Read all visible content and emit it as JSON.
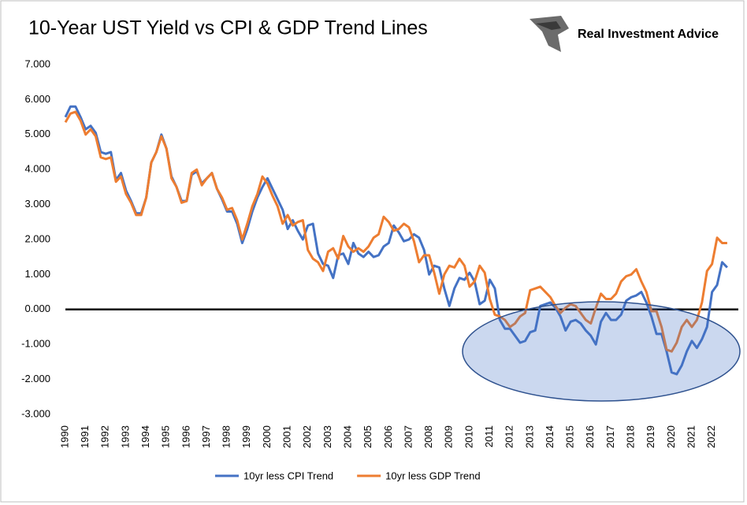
{
  "brand": "Real Investment Advice",
  "chart_data": {
    "type": "line",
    "title": "10-Year UST Yield vs CPI & GDP Trend Lines",
    "x": [
      1990,
      1990.25,
      1990.5,
      1990.75,
      1991,
      1991.25,
      1991.5,
      1991.75,
      1992,
      1992.25,
      1992.5,
      1992.75,
      1993,
      1993.25,
      1993.5,
      1993.75,
      1994,
      1994.25,
      1994.5,
      1994.75,
      1995,
      1995.25,
      1995.5,
      1995.75,
      1996,
      1996.25,
      1996.5,
      1996.75,
      1997,
      1997.25,
      1997.5,
      1997.75,
      1998,
      1998.25,
      1998.5,
      1998.75,
      1999,
      1999.25,
      1999.5,
      1999.75,
      2000,
      2000.25,
      2000.5,
      2000.75,
      2001,
      2001.25,
      2001.5,
      2001.75,
      2002,
      2002.25,
      2002.5,
      2002.75,
      2003,
      2003.25,
      2003.5,
      2003.75,
      2004,
      2004.25,
      2004.5,
      2004.75,
      2005,
      2005.25,
      2005.5,
      2005.75,
      2006,
      2006.25,
      2006.5,
      2006.75,
      2007,
      2007.25,
      2007.5,
      2007.75,
      2008,
      2008.25,
      2008.5,
      2008.75,
      2009,
      2009.25,
      2009.5,
      2009.75,
      2010,
      2010.25,
      2010.5,
      2010.75,
      2011,
      2011.25,
      2011.5,
      2011.75,
      2012,
      2012.25,
      2012.5,
      2012.75,
      2013,
      2013.25,
      2013.5,
      2013.75,
      2014,
      2014.25,
      2014.5,
      2014.75,
      2015,
      2015.25,
      2015.5,
      2015.75,
      2016,
      2016.25,
      2016.5,
      2016.75,
      2017,
      2017.25,
      2017.5,
      2017.75,
      2018,
      2018.25,
      2018.5,
      2018.75,
      2019,
      2019.25,
      2019.5,
      2019.75,
      2020,
      2020.25,
      2020.5,
      2020.75,
      2021,
      2021.25,
      2021.5,
      2021.75,
      2022,
      2022.25,
      2022.5,
      2022.75
    ],
    "series": [
      {
        "name": "10yr less CPI Trend",
        "color": "#4472c4",
        "values": [
          5.5,
          5.8,
          5.8,
          5.5,
          5.15,
          5.25,
          5.05,
          4.5,
          4.45,
          4.5,
          3.7,
          3.9,
          3.4,
          3.1,
          2.75,
          2.75,
          3.2,
          4.2,
          4.5,
          5.0,
          4.6,
          3.8,
          3.5,
          3.1,
          3.1,
          3.85,
          3.95,
          3.6,
          3.75,
          3.9,
          3.45,
          3.15,
          2.8,
          2.8,
          2.45,
          1.9,
          2.3,
          2.8,
          3.2,
          3.5,
          3.75,
          3.45,
          3.15,
          2.85,
          2.3,
          2.55,
          2.25,
          2.0,
          2.4,
          2.45,
          1.6,
          1.3,
          1.25,
          0.9,
          1.55,
          1.6,
          1.3,
          1.9,
          1.6,
          1.5,
          1.65,
          1.5,
          1.55,
          1.8,
          1.9,
          2.4,
          2.2,
          1.95,
          2.0,
          2.15,
          2.05,
          1.7,
          1.0,
          1.25,
          1.2,
          0.6,
          0.1,
          0.6,
          0.9,
          0.85,
          1.05,
          0.8,
          0.15,
          0.25,
          0.85,
          0.6,
          -0.3,
          -0.55,
          -0.55,
          -0.75,
          -0.95,
          -0.9,
          -0.65,
          -0.6,
          0.1,
          0.15,
          0.2,
          0.05,
          -0.2,
          -0.6,
          -0.35,
          -0.3,
          -0.4,
          -0.6,
          -0.75,
          -1.0,
          -0.35,
          -0.1,
          -0.3,
          -0.3,
          -0.15,
          0.25,
          0.35,
          0.4,
          0.5,
          0.2,
          -0.2,
          -0.7,
          -0.7,
          -1.2,
          -1.8,
          -1.85,
          -1.6,
          -1.2,
          -0.9,
          -1.1,
          -0.85,
          -0.5,
          0.5,
          0.7,
          1.35,
          1.2
        ]
      },
      {
        "name": "10yr less GDP Trend",
        "color": "#ed7d31",
        "values": [
          5.35,
          5.6,
          5.65,
          5.4,
          5.0,
          5.15,
          4.95,
          4.35,
          4.3,
          4.35,
          3.65,
          3.8,
          3.3,
          3.05,
          2.7,
          2.7,
          3.2,
          4.2,
          4.5,
          4.95,
          4.6,
          3.75,
          3.5,
          3.05,
          3.1,
          3.9,
          4.0,
          3.55,
          3.75,
          3.9,
          3.45,
          3.2,
          2.85,
          2.9,
          2.55,
          2.0,
          2.45,
          2.95,
          3.3,
          3.8,
          3.6,
          3.25,
          2.95,
          2.45,
          2.7,
          2.4,
          2.5,
          2.55,
          1.7,
          1.45,
          1.35,
          1.1,
          1.65,
          1.75,
          1.45,
          2.1,
          1.8,
          1.65,
          1.75,
          1.65,
          1.8,
          2.05,
          2.15,
          2.65,
          2.5,
          2.25,
          2.3,
          2.45,
          2.35,
          1.95,
          1.35,
          1.55,
          1.55,
          1.05,
          0.45,
          1.0,
          1.25,
          1.2,
          1.45,
          1.25,
          0.65,
          0.8,
          1.25,
          1.05,
          0.3,
          -0.15,
          -0.2,
          -0.3,
          -0.5,
          -0.4,
          -0.2,
          -0.1,
          0.55,
          0.6,
          0.65,
          0.5,
          0.35,
          0.1,
          -0.1,
          0.05,
          0.15,
          0.1,
          -0.1,
          -0.3,
          -0.4,
          0.05,
          0.45,
          0.3,
          0.3,
          0.45,
          0.8,
          0.95,
          1.0,
          1.15,
          0.8,
          0.5,
          -0.05,
          -0.05,
          -0.5,
          -1.15,
          -1.2,
          -0.95,
          -0.5,
          -0.3,
          -0.5,
          -0.3,
          0.2,
          1.1,
          1.3,
          2.05,
          1.9,
          1.9
        ]
      }
    ],
    "xlim": [
      1990,
      2023.3
    ],
    "xticks": [
      1990,
      1991,
      1992,
      1993,
      1994,
      1995,
      1996,
      1997,
      1998,
      1999,
      2000,
      2001,
      2002,
      2003,
      2004,
      2005,
      2006,
      2007,
      2008,
      2009,
      2010,
      2011,
      2012,
      2013,
      2014,
      2015,
      2016,
      2017,
      2018,
      2019,
      2020,
      2021,
      2022
    ],
    "ylim": [
      -3,
      7
    ],
    "yticks": [
      {
        "value": 7,
        "label": "7.000"
      },
      {
        "value": 6,
        "label": "6.000"
      },
      {
        "value": 5,
        "label": "5.000"
      },
      {
        "value": 4,
        "label": "4.000"
      },
      {
        "value": 3,
        "label": "3.000"
      },
      {
        "value": 2,
        "label": "2.000"
      },
      {
        "value": 1,
        "label": "1.000"
      },
      {
        "value": 0,
        "label": "0.000"
      },
      {
        "value": -1,
        "label": "-1.000"
      },
      {
        "value": -2,
        "label": "-2.000"
      },
      {
        "value": -3,
        "label": "-3.000"
      }
    ],
    "grid": false,
    "legend": "bottom"
  }
}
